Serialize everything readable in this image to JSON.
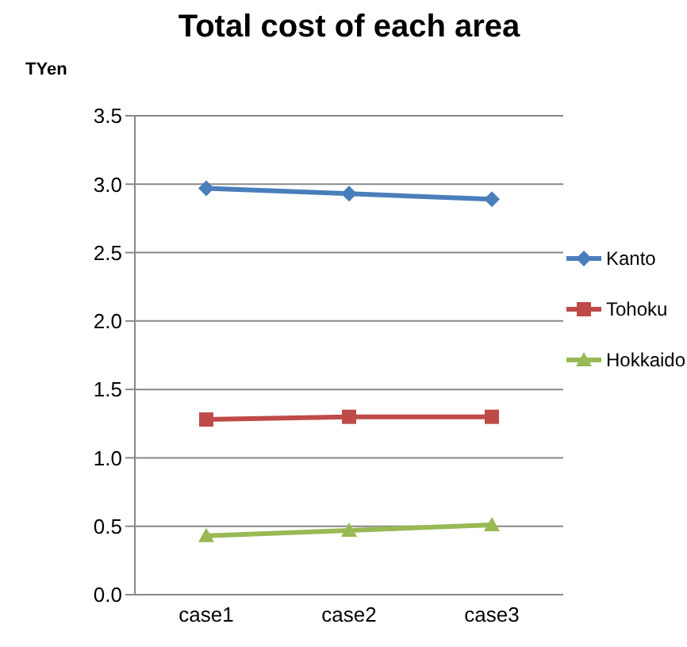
{
  "chart_data": {
    "type": "line",
    "title": "Total cost of each area",
    "ylabel": "TYen",
    "categories": [
      "case1",
      "case2",
      "case3"
    ],
    "series": [
      {
        "name": "Kanto",
        "color": "#4a7ebb",
        "marker": "diamond",
        "values": [
          2.97,
          2.93,
          2.89
        ]
      },
      {
        "name": "Tohoku",
        "color": "#be4b48",
        "marker": "square",
        "values": [
          1.28,
          1.3,
          1.3
        ]
      },
      {
        "name": "Hokkaido",
        "color": "#98b954",
        "marker": "triangle",
        "values": [
          0.43,
          0.47,
          0.51
        ]
      }
    ],
    "ylim": [
      0,
      3.5
    ],
    "yticks": [
      {
        "value": 0,
        "label": "0.0"
      },
      0.5,
      {
        "value": 1,
        "label": "1.0"
      },
      1.5,
      {
        "value": 2,
        "label": "2.0"
      },
      2.5,
      {
        "value": 3,
        "label": "3.0"
      },
      3.5
    ],
    "grid": "y",
    "legend": "right"
  }
}
